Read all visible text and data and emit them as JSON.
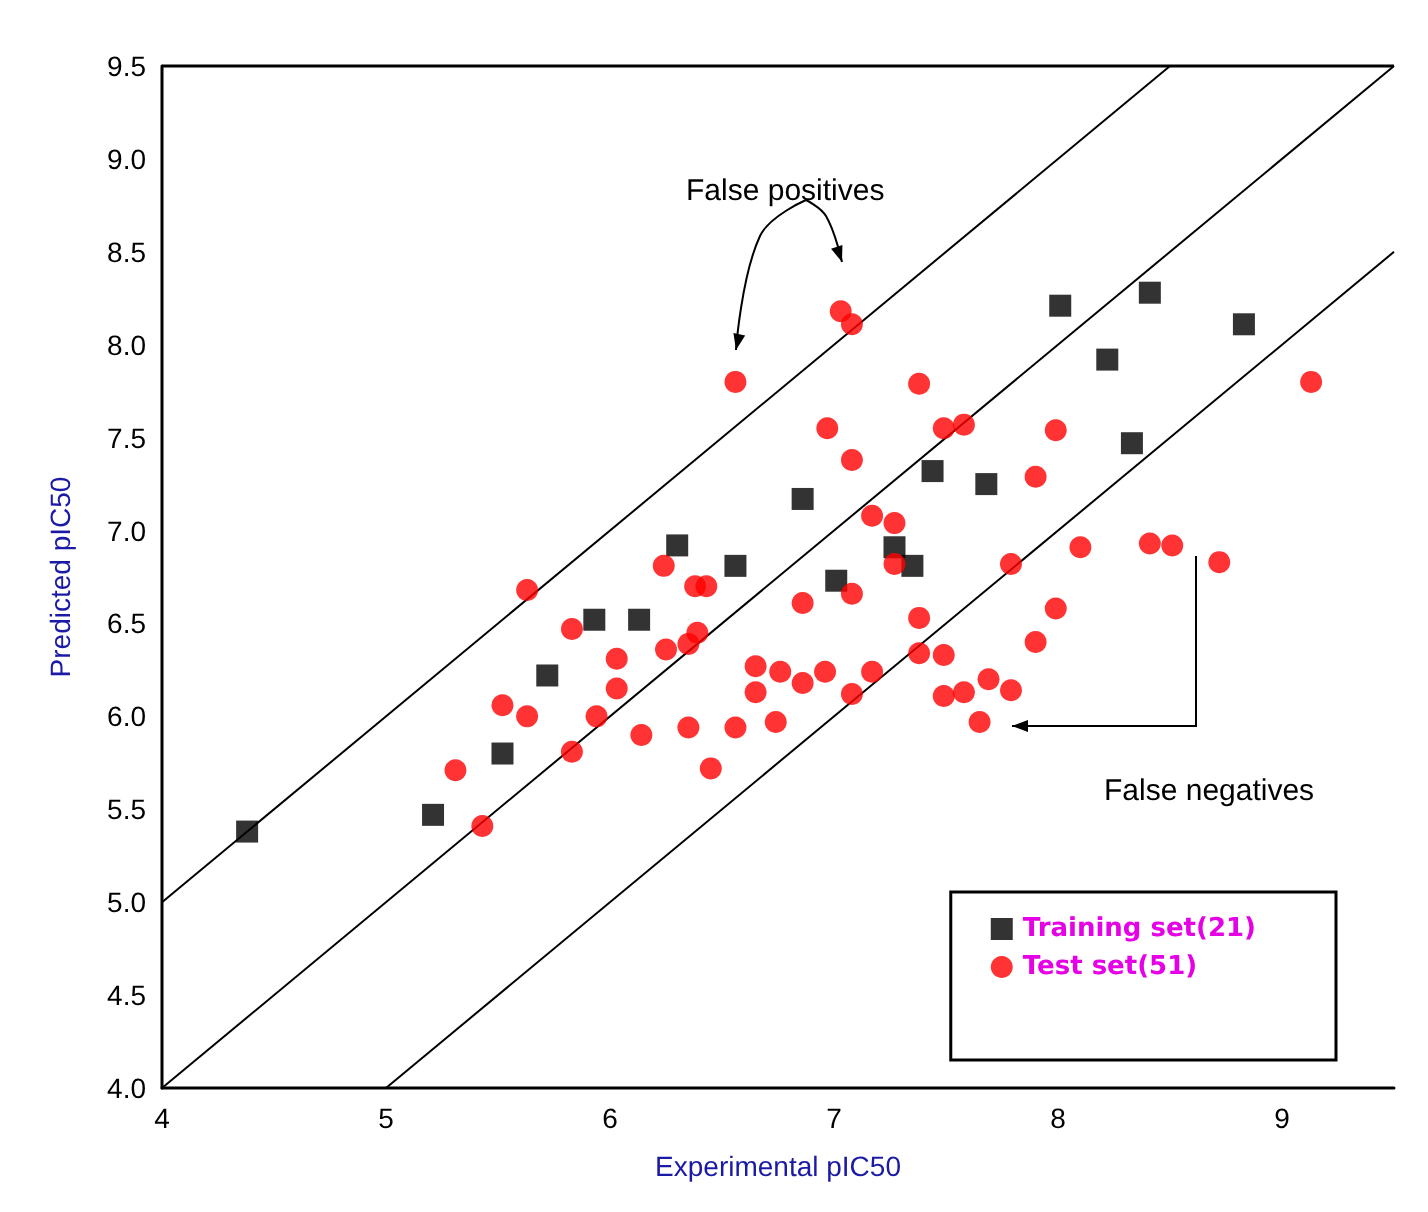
{
  "chart_data": {
    "type": "scatter",
    "xlabel": "Experimental pIC50",
    "ylabel": "Predicted pIC50",
    "xlim": [
      4,
      9.5
    ],
    "xticks": [
      4,
      5,
      6,
      7,
      8,
      9
    ],
    "ylim": [
      4,
      9.5
    ],
    "yticks": [
      {
        "value": 4,
        "label": "4.0"
      },
      {
        "value": 4.5,
        "label": "4.5"
      },
      {
        "value": 5,
        "label": "5.0"
      },
      {
        "value": 5.5,
        "label": "5.5"
      },
      {
        "value": 6,
        "label": "6.0"
      },
      {
        "value": 6.5,
        "label": "6.5"
      },
      {
        "value": 7,
        "label": "7.0"
      },
      {
        "value": 7.5,
        "label": "7.5"
      },
      {
        "value": 8,
        "label": "8.0"
      },
      {
        "value": 8.5,
        "label": "8.5"
      },
      {
        "value": 9,
        "label": "9.0"
      },
      {
        "value": 9.5,
        "label": "9.5"
      }
    ],
    "grid": false,
    "legend": "bottom right",
    "series": [
      {
        "type": "line",
        "color": "#000000",
        "marker": "none",
        "x": [
          4,
          8.5
        ],
        "values": [
          5,
          9.5
        ]
      },
      {
        "type": "line",
        "color": "#000000",
        "marker": "none",
        "x": [
          4,
          9.5
        ],
        "values": [
          4,
          9.5
        ]
      },
      {
        "type": "line",
        "color": "#000000",
        "marker": "none",
        "x": [
          5,
          9.5
        ],
        "values": [
          4,
          8.5
        ]
      },
      {
        "name": "Training set(21)",
        "color": "#000000",
        "marker": "square",
        "x": [
          4.38,
          5.21,
          5.52,
          5.72,
          5.93,
          6.13,
          6.3,
          6.56,
          6.86,
          7.01,
          7.27,
          7.35,
          7.44,
          7.68,
          8.01,
          8.22,
          8.33,
          8.41,
          8.83
        ],
        "values": [
          5.38,
          5.47,
          5.8,
          6.22,
          6.52,
          6.52,
          6.92,
          6.81,
          7.17,
          6.73,
          6.91,
          6.81,
          7.32,
          7.25,
          8.21,
          7.92,
          7.47,
          8.28,
          8.11
        ]
      },
      {
        "name": "Test set(51)",
        "color": "#ff0000",
        "marker": "circle",
        "x": [
          5.43,
          5.31,
          5.52,
          5.63,
          5.63,
          5.83,
          5.83,
          5.94,
          6.03,
          6.03,
          6.14,
          6.24,
          6.25,
          6.35,
          6.35,
          6.39,
          6.38,
          6.43,
          6.45,
          6.56,
          6.56,
          6.65,
          6.65,
          6.74,
          6.76,
          6.86,
          6.86,
          6.96,
          6.97,
          7.03,
          7.08,
          7.08,
          7.08,
          7.08,
          7.17,
          7.17,
          7.27,
          7.27,
          7.38,
          7.38,
          7.38,
          7.49,
          7.49,
          7.49,
          7.58,
          7.58,
          7.65,
          7.69,
          7.79,
          7.79,
          7.9,
          7.9,
          7.99,
          7.99,
          8.1,
          8.41,
          8.51,
          8.72,
          9.13
        ],
        "values": [
          5.41,
          5.71,
          6.06,
          6.68,
          6.0,
          6.47,
          5.81,
          6.0,
          6.31,
          6.15,
          5.9,
          6.81,
          6.36,
          6.39,
          5.94,
          6.45,
          6.7,
          6.7,
          5.72,
          7.8,
          5.94,
          6.27,
          6.13,
          5.97,
          6.24,
          6.61,
          6.18,
          6.24,
          7.55,
          8.18,
          8.11,
          7.38,
          6.66,
          6.12,
          7.08,
          6.24,
          7.04,
          6.82,
          7.79,
          6.53,
          6.34,
          7.55,
          6.33,
          6.11,
          7.57,
          6.13,
          5.97,
          6.2,
          6.82,
          6.14,
          7.29,
          6.4,
          7.54,
          6.58,
          6.91,
          6.93,
          6.92,
          6.83,
          7.8
        ]
      }
    ],
    "annotations": [
      "False positives",
      "False negatives"
    ]
  }
}
